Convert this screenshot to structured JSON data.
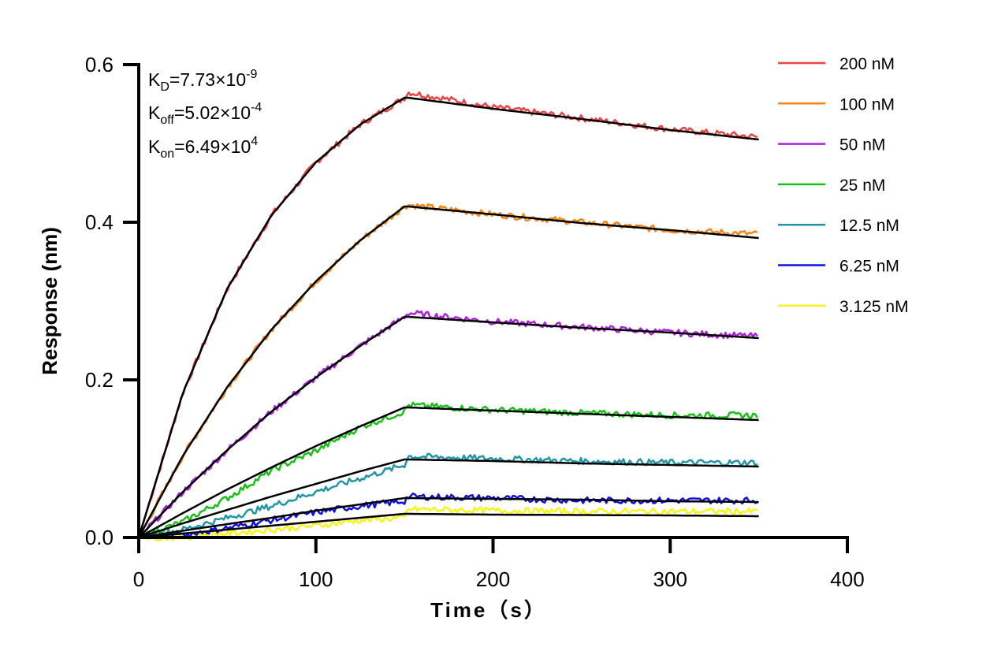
{
  "chart_data": {
    "type": "line",
    "xlabel": "Time（s）",
    "ylabel": "Response (nm)",
    "xlim": [
      0,
      400
    ],
    "ylim": [
      0,
      0.6
    ],
    "xticks": [
      "0",
      "100",
      "200",
      "300",
      "400"
    ],
    "yticks": [
      "0.0",
      "0.2",
      "0.4",
      "0.6"
    ],
    "grid": false,
    "legend_position": "right",
    "annotations": {
      "kd": {
        "base": "K",
        "sub": "D",
        "mant": "=7.73×10",
        "exp": "-9"
      },
      "koff": {
        "base": "K",
        "sub": "off",
        "mant": "=5.02×10",
        "exp": "-4"
      },
      "kon": {
        "base": "K",
        "sub": "on",
        "mant": "=6.49×10",
        "exp": "4"
      }
    },
    "fit_color": "#000000",
    "x": [
      0,
      25,
      50,
      75,
      100,
      125,
      150,
      152,
      200,
      250,
      300,
      350
    ],
    "series": [
      {
        "name": "200 nM",
        "color": "#ef4444",
        "values": [
          0,
          0.184,
          0.316,
          0.409,
          0.476,
          0.524,
          0.558,
          0.565,
          0.546,
          0.532,
          0.518,
          0.508
        ],
        "fit": [
          0,
          0.184,
          0.316,
          0.409,
          0.476,
          0.524,
          0.558,
          0.558,
          0.544,
          0.531,
          0.517,
          0.505
        ]
      },
      {
        "name": "100 nM",
        "color": "#f7861a",
        "values": [
          0,
          0.104,
          0.191,
          0.264,
          0.325,
          0.377,
          0.42,
          0.422,
          0.41,
          0.4,
          0.39,
          0.385
        ],
        "fit": [
          0,
          0.104,
          0.191,
          0.264,
          0.325,
          0.377,
          0.42,
          0.42,
          0.41,
          0.399,
          0.39,
          0.38
        ]
      },
      {
        "name": "50 nM",
        "color": "#b020e0",
        "values": [
          0,
          0.058,
          0.111,
          0.16,
          0.203,
          0.243,
          0.28,
          0.285,
          0.274,
          0.267,
          0.26,
          0.255
        ],
        "fit": [
          0,
          0.058,
          0.111,
          0.16,
          0.203,
          0.243,
          0.28,
          0.28,
          0.273,
          0.266,
          0.26,
          0.253
        ]
      },
      {
        "name": "25 nM",
        "color": "#18c018",
        "values": [
          0,
          0.02,
          0.05,
          0.085,
          0.11,
          0.14,
          0.16,
          0.168,
          0.162,
          0.158,
          0.155,
          0.155
        ],
        "fit": [
          0,
          0.031,
          0.061,
          0.089,
          0.116,
          0.141,
          0.165,
          0.165,
          0.161,
          0.157,
          0.153,
          0.149
        ]
      },
      {
        "name": "12.5 nM",
        "color": "#2196a8",
        "values": [
          0,
          0.01,
          0.025,
          0.04,
          0.058,
          0.075,
          0.092,
          0.103,
          0.1,
          0.097,
          0.095,
          0.095
        ],
        "fit": [
          0,
          0.018,
          0.035,
          0.052,
          0.068,
          0.084,
          0.099,
          0.099,
          0.097,
          0.094,
          0.092,
          0.09
        ]
      },
      {
        "name": "6.25 nM",
        "color": "#1010e0",
        "values": [
          0,
          0.003,
          0.012,
          0.022,
          0.032,
          0.04,
          0.046,
          0.052,
          0.05,
          0.047,
          0.047,
          0.047
        ],
        "fit": [
          0,
          0.0086,
          0.017,
          0.025,
          0.034,
          0.042,
          0.05,
          0.05,
          0.049,
          0.048,
          0.046,
          0.045
        ]
      },
      {
        "name": "3.125 nM",
        "color": "#f5f51a",
        "values": [
          0,
          0,
          0.005,
          0.01,
          0.015,
          0.022,
          0.025,
          0.036,
          0.034,
          0.033,
          0.033,
          0.033
        ],
        "fit": [
          0,
          0.005,
          0.01,
          0.015,
          0.02,
          0.025,
          0.03,
          0.03,
          0.029,
          0.0285,
          0.028,
          0.027
        ]
      }
    ]
  }
}
